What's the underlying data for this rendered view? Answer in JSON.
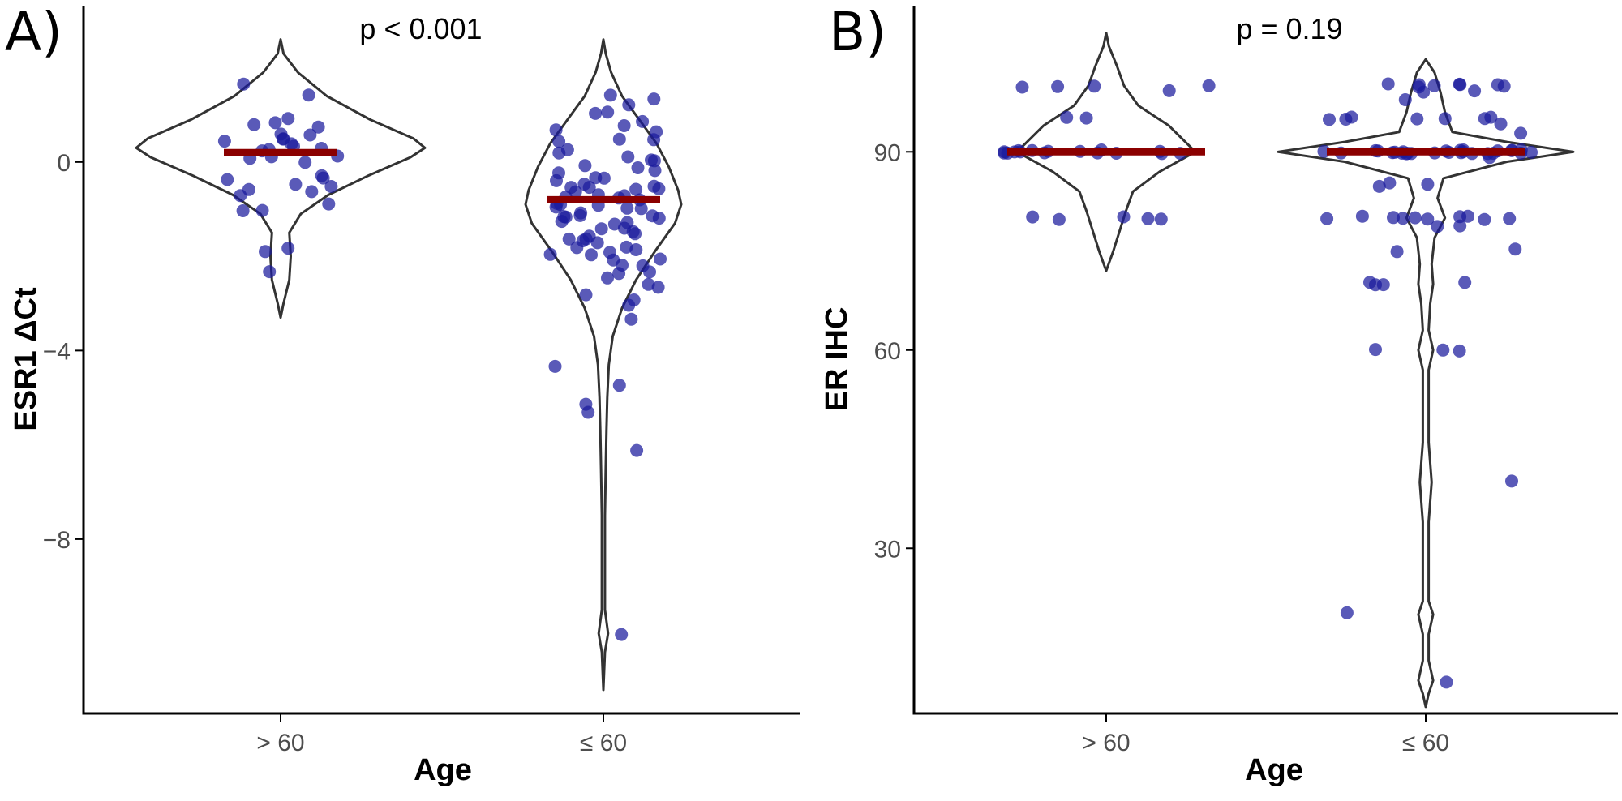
{
  "chart_data": [
    {
      "type": "violin",
      "panel_label": "A)",
      "annotation": "p < 0.001",
      "xlabel": "Age",
      "ylabel": "ESR1 ΔCt",
      "categories": [
        "> 60",
        "≤ 60"
      ],
      "ylim": [
        -11.7,
        3.3
      ],
      "yticks": [
        {
          "value": 0,
          "label": "0"
        },
        {
          "value": -4,
          "label": "−4"
        },
        {
          "value": -8,
          "label": "−8"
        }
      ],
      "grid": false,
      "medians": [
        0.2,
        -0.8
      ],
      "violin_range": [
        [
          -3.3,
          2.6
        ],
        [
          -11.2,
          2.6
        ]
      ],
      "points": [
        [
          1.65,
          1.38,
          0.9,
          0.87,
          0.8,
          0.72,
          0.6,
          0.58,
          0.5,
          0.45,
          0.4,
          0.35,
          0.3,
          0.28,
          0.25,
          0.2,
          0.15,
          0.12,
          0.1,
          -0.05,
          -0.3,
          -0.3,
          -0.4,
          -0.5,
          -0.55,
          -0.6,
          -0.65,
          -0.7,
          -0.9,
          -1.0,
          -1.05,
          -1.8,
          -1.9,
          -2.3
        ],
        [
          1.4,
          1.3,
          1.2,
          1.1,
          1.0,
          0.9,
          0.8,
          0.7,
          0.6,
          0.5,
          0.45,
          0.4,
          0.3,
          0.2,
          0.1,
          0.05,
          0.0,
          -0.1,
          -0.15,
          -0.2,
          -0.25,
          -0.3,
          -0.35,
          -0.4,
          -0.45,
          -0.5,
          -0.5,
          -0.55,
          -0.6,
          -0.6,
          -0.65,
          -0.7,
          -0.7,
          -0.75,
          -0.8,
          -0.8,
          -0.85,
          -0.9,
          -0.9,
          -0.95,
          -1.0,
          -1.0,
          -1.05,
          -1.1,
          -1.1,
          -1.15,
          -1.2,
          -1.2,
          -1.3,
          -1.3,
          -1.35,
          -1.4,
          -1.4,
          -1.5,
          -1.5,
          -1.55,
          -1.6,
          -1.6,
          -1.7,
          -1.7,
          -1.8,
          -1.8,
          -1.9,
          -1.9,
          -2.0,
          -2.0,
          -2.1,
          -2.1,
          -2.2,
          -2.2,
          -2.3,
          -2.4,
          -2.5,
          -2.6,
          -2.7,
          -2.8,
          -2.9,
          -3.0,
          -3.3,
          -4.3,
          -4.7,
          -5.1,
          -5.3,
          -6.1,
          -10.0
        ]
      ]
    },
    {
      "type": "violin",
      "panel_label": "B)",
      "annotation": "p = 0.19",
      "xlabel": "Age",
      "ylabel": "ER IHC",
      "categories": [
        "> 60",
        "≤ 60"
      ],
      "ylim": [
        5,
        112
      ],
      "yticks": [
        {
          "value": 90,
          "label": "90"
        },
        {
          "value": 60,
          "label": "60"
        },
        {
          "value": 30,
          "label": "30"
        }
      ],
      "grid": false,
      "medians": [
        90,
        90
      ],
      "violin_range": [
        [
          72,
          108
        ],
        [
          6,
          104
        ]
      ],
      "points": [
        [
          100,
          100,
          100,
          100,
          99,
          95,
          95,
          90,
          90,
          90,
          90,
          90,
          90,
          90,
          90,
          90,
          90,
          90,
          90,
          90,
          90,
          90,
          90,
          80,
          80,
          80,
          80,
          80
        ],
        [
          100,
          100,
          100,
          100,
          100,
          100,
          100,
          100,
          99,
          99,
          98,
          95,
          95,
          95,
          95,
          95,
          95,
          95,
          94,
          93,
          90,
          90,
          90,
          90,
          90,
          90,
          90,
          90,
          90,
          90,
          90,
          90,
          90,
          90,
          90,
          90,
          90,
          90,
          90,
          90,
          90,
          90,
          90,
          90,
          90,
          90,
          90,
          89,
          85,
          85,
          85,
          80,
          80,
          80,
          80,
          80,
          80,
          80,
          80,
          80,
          80,
          79,
          79,
          75,
          75,
          70,
          70,
          70,
          70,
          60,
          60,
          60,
          40,
          20,
          10
        ]
      ]
    }
  ],
  "colors": {
    "points": "#1a1a9c",
    "median": "#8b0000",
    "violin_outline": "#333333",
    "axis": "#000000",
    "tick_text": "#4d4d4d"
  }
}
